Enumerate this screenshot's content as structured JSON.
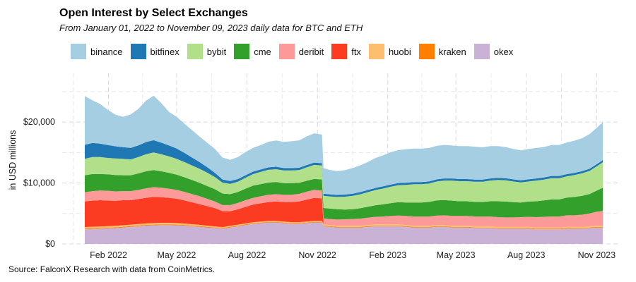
{
  "chart_data": {
    "type": "area",
    "title": "Open Interest by Select Exchanges",
    "subtitle": "From January 01, 2022 to November 09, 2023 daily data for BTC and ETH",
    "ylabel": "in USD millions",
    "xlabel": "",
    "source": "Source: FalconX Research with data from CoinMetrics.",
    "ylim": [
      0,
      28000
    ],
    "xlim_days": [
      0,
      680
    ],
    "y_ticks": [
      {
        "value": 0,
        "label": "$0"
      },
      {
        "value": 10000,
        "label": "$10,000"
      },
      {
        "value": 20000,
        "label": "$20,000"
      }
    ],
    "x_ticks": [
      {
        "day": 31,
        "label": "Feb 2022"
      },
      {
        "day": 120,
        "label": "May 2022"
      },
      {
        "day": 212,
        "label": "Aug 2022"
      },
      {
        "day": 304,
        "label": "Nov 2022"
      },
      {
        "day": 396,
        "label": "Feb 2023"
      },
      {
        "day": 485,
        "label": "May 2023"
      },
      {
        "day": 577,
        "label": "Aug 2023"
      },
      {
        "day": 669,
        "label": "Nov 2023"
      }
    ],
    "x_days": [
      0,
      10,
      20,
      30,
      40,
      50,
      60,
      70,
      80,
      90,
      100,
      110,
      120,
      130,
      140,
      150,
      160,
      170,
      180,
      190,
      200,
      210,
      220,
      230,
      240,
      250,
      260,
      270,
      280,
      290,
      300,
      310,
      312,
      320,
      330,
      340,
      350,
      360,
      370,
      380,
      390,
      400,
      410,
      420,
      430,
      440,
      450,
      460,
      470,
      480,
      490,
      500,
      510,
      520,
      530,
      540,
      550,
      560,
      570,
      580,
      590,
      600,
      610,
      620,
      630,
      640,
      650,
      660,
      670,
      677
    ],
    "series": [
      {
        "name": "okex",
        "color": "#cab2d6",
        "values": [
          2400,
          2450,
          2500,
          2550,
          2600,
          2700,
          2800,
          2900,
          3000,
          3050,
          3100,
          3100,
          3050,
          3000,
          2900,
          2800,
          2700,
          2600,
          2500,
          2700,
          2900,
          3100,
          3300,
          3400,
          3500,
          3500,
          3400,
          3300,
          3300,
          3400,
          3500,
          3500,
          2900,
          2800,
          2700,
          2700,
          2700,
          2700,
          2800,
          2900,
          2900,
          2900,
          2900,
          2800,
          2700,
          2700,
          2700,
          2800,
          2800,
          2700,
          2700,
          2700,
          2600,
          2600,
          2600,
          2500,
          2500,
          2500,
          2500,
          2500,
          2400,
          2400,
          2400,
          2400,
          2500,
          2500,
          2500,
          2600,
          2700,
          2700
        ]
      },
      {
        "name": "kraken",
        "color": "#ff7f00",
        "values": [
          120,
          120,
          120,
          120,
          120,
          120,
          120,
          120,
          120,
          120,
          120,
          120,
          120,
          110,
          110,
          110,
          100,
          100,
          100,
          100,
          100,
          100,
          100,
          100,
          100,
          100,
          100,
          100,
          100,
          100,
          100,
          100,
          100,
          100,
          100,
          100,
          100,
          100,
          100,
          100,
          100,
          100,
          100,
          100,
          100,
          100,
          100,
          100,
          100,
          100,
          100,
          100,
          100,
          100,
          100,
          100,
          100,
          100,
          100,
          100,
          100,
          100,
          100,
          100,
          100,
          100,
          100,
          100,
          110,
          110
        ]
      },
      {
        "name": "huobi",
        "color": "#fdbf6f",
        "values": [
          250,
          250,
          250,
          250,
          250,
          250,
          250,
          250,
          250,
          250,
          250,
          250,
          250,
          240,
          230,
          220,
          200,
          180,
          170,
          170,
          170,
          170,
          170,
          170,
          170,
          170,
          170,
          170,
          170,
          170,
          170,
          170,
          200,
          200,
          200,
          200,
          200,
          200,
          200,
          200,
          200,
          200,
          200,
          200,
          200,
          200,
          200,
          200,
          200,
          200,
          200,
          200,
          200,
          200,
          200,
          200,
          200,
          200,
          200,
          200,
          200,
          200,
          200,
          200,
          200,
          200,
          200,
          200,
          200,
          200
        ]
      },
      {
        "name": "ftx",
        "color": "#fb3b22",
        "values": [
          4200,
          4300,
          4300,
          4200,
          4100,
          4100,
          4000,
          4100,
          4200,
          4300,
          4200,
          4100,
          4000,
          3800,
          3600,
          3400,
          3200,
          3000,
          2600,
          2400,
          2500,
          2700,
          2900,
          3000,
          3100,
          3200,
          3200,
          3300,
          3400,
          3600,
          3800,
          3700,
          0,
          0,
          0,
          0,
          0,
          0,
          0,
          0,
          0,
          0,
          0,
          0,
          0,
          0,
          0,
          0,
          0,
          0,
          0,
          0,
          0,
          0,
          0,
          0,
          0,
          0,
          0,
          0,
          0,
          0,
          0,
          0,
          0,
          0,
          0,
          0,
          0,
          0
        ]
      },
      {
        "name": "deribit",
        "color": "#fb9a99",
        "values": [
          1500,
          1550,
          1600,
          1600,
          1550,
          1500,
          1500,
          1500,
          1550,
          1600,
          1550,
          1500,
          1450,
          1400,
          1350,
          1300,
          1200,
          1100,
          1000,
          1000,
          1050,
          1100,
          1100,
          1150,
          1200,
          1200,
          1200,
          1200,
          1250,
          1300,
          1300,
          1300,
          1000,
          1000,
          1000,
          1050,
          1100,
          1150,
          1200,
          1250,
          1300,
          1400,
          1450,
          1500,
          1500,
          1500,
          1500,
          1550,
          1600,
          1600,
          1600,
          1600,
          1600,
          1600,
          1600,
          1600,
          1550,
          1550,
          1600,
          1650,
          1700,
          1750,
          1800,
          1800,
          1900,
          1900,
          2000,
          2100,
          2300,
          2400
        ]
      },
      {
        "name": "cme",
        "color": "#33a02c",
        "values": [
          2800,
          2800,
          2700,
          2700,
          2700,
          2600,
          2600,
          2700,
          2800,
          2800,
          2700,
          2600,
          2500,
          2400,
          2300,
          2200,
          2100,
          2000,
          1900,
          1800,
          1800,
          1900,
          2000,
          2000,
          2000,
          2000,
          1900,
          1900,
          1800,
          1800,
          1800,
          1800,
          1700,
          1700,
          1700,
          1600,
          1600,
          1700,
          1800,
          1900,
          2000,
          2100,
          2200,
          2200,
          2300,
          2300,
          2400,
          2500,
          2500,
          2500,
          2400,
          2400,
          2400,
          2400,
          2500,
          2600,
          2600,
          2500,
          2400,
          2500,
          2600,
          2700,
          2800,
          2800,
          2900,
          3000,
          3100,
          3200,
          3500,
          3800
        ]
      },
      {
        "name": "bybit",
        "color": "#b2df8a",
        "values": [
          2700,
          2800,
          2800,
          2700,
          2700,
          2700,
          2600,
          2700,
          2800,
          2900,
          2800,
          2700,
          2600,
          2500,
          2400,
          2300,
          2200,
          2000,
          1800,
          1700,
          1700,
          1800,
          1900,
          2000,
          2100,
          2100,
          2100,
          2100,
          2100,
          2200,
          2300,
          2300,
          2000,
          2000,
          2000,
          2100,
          2200,
          2300,
          2400,
          2500,
          2600,
          2700,
          2800,
          2900,
          3000,
          3000,
          3000,
          3100,
          3200,
          3300,
          3300,
          3300,
          3300,
          3300,
          3400,
          3500,
          3500,
          3400,
          3300,
          3300,
          3400,
          3400,
          3500,
          3500,
          3500,
          3600,
          3700,
          3800,
          4000,
          4200
        ]
      },
      {
        "name": "bitfinex",
        "color": "#1f78b4",
        "values": [
          2300,
          2300,
          2200,
          2100,
          2000,
          1900,
          1900,
          1900,
          2000,
          2000,
          1900,
          1800,
          1700,
          1500,
          1300,
          1100,
          900,
          700,
          500,
          450,
          420,
          400,
          400,
          400,
          400,
          400,
          380,
          380,
          380,
          380,
          380,
          380,
          350,
          350,
          350,
          350,
          350,
          350,
          350,
          350,
          350,
          350,
          350,
          350,
          350,
          350,
          350,
          350,
          350,
          350,
          350,
          350,
          350,
          350,
          350,
          350,
          350,
          350,
          350,
          350,
          350,
          350,
          350,
          350,
          350,
          350,
          350,
          350,
          350,
          350
        ]
      },
      {
        "name": "binance",
        "color": "#a6cee3",
        "values": [
          8000,
          7000,
          6500,
          5800,
          5200,
          5000,
          5500,
          6000,
          6800,
          7300,
          6500,
          5500,
          5200,
          4800,
          4500,
          4200,
          4000,
          3900,
          3600,
          3500,
          3600,
          3800,
          3900,
          4000,
          4200,
          4300,
          4300,
          4400,
          4500,
          4700,
          4800,
          4700,
          4200,
          4000,
          3900,
          4000,
          4200,
          4400,
          4600,
          4900,
          5100,
          5300,
          5400,
          5500,
          5500,
          5500,
          5500,
          5500,
          5500,
          5400,
          5400,
          5400,
          5400,
          5300,
          5300,
          5200,
          5100,
          5000,
          4900,
          5000,
          5000,
          5000,
          5100,
          5100,
          5200,
          5300,
          5400,
          5700,
          6000,
          6200
        ]
      }
    ]
  },
  "legend_items": [
    {
      "name": "binance",
      "color": "#a6cee3"
    },
    {
      "name": "bitfinex",
      "color": "#1f78b4"
    },
    {
      "name": "bybit",
      "color": "#b2df8a"
    },
    {
      "name": "cme",
      "color": "#33a02c"
    },
    {
      "name": "deribit",
      "color": "#fb9a99"
    },
    {
      "name": "ftx",
      "color": "#fb3b22"
    },
    {
      "name": "huobi",
      "color": "#fdbf6f"
    },
    {
      "name": "kraken",
      "color": "#ff7f00"
    },
    {
      "name": "okex",
      "color": "#cab2d6"
    }
  ]
}
